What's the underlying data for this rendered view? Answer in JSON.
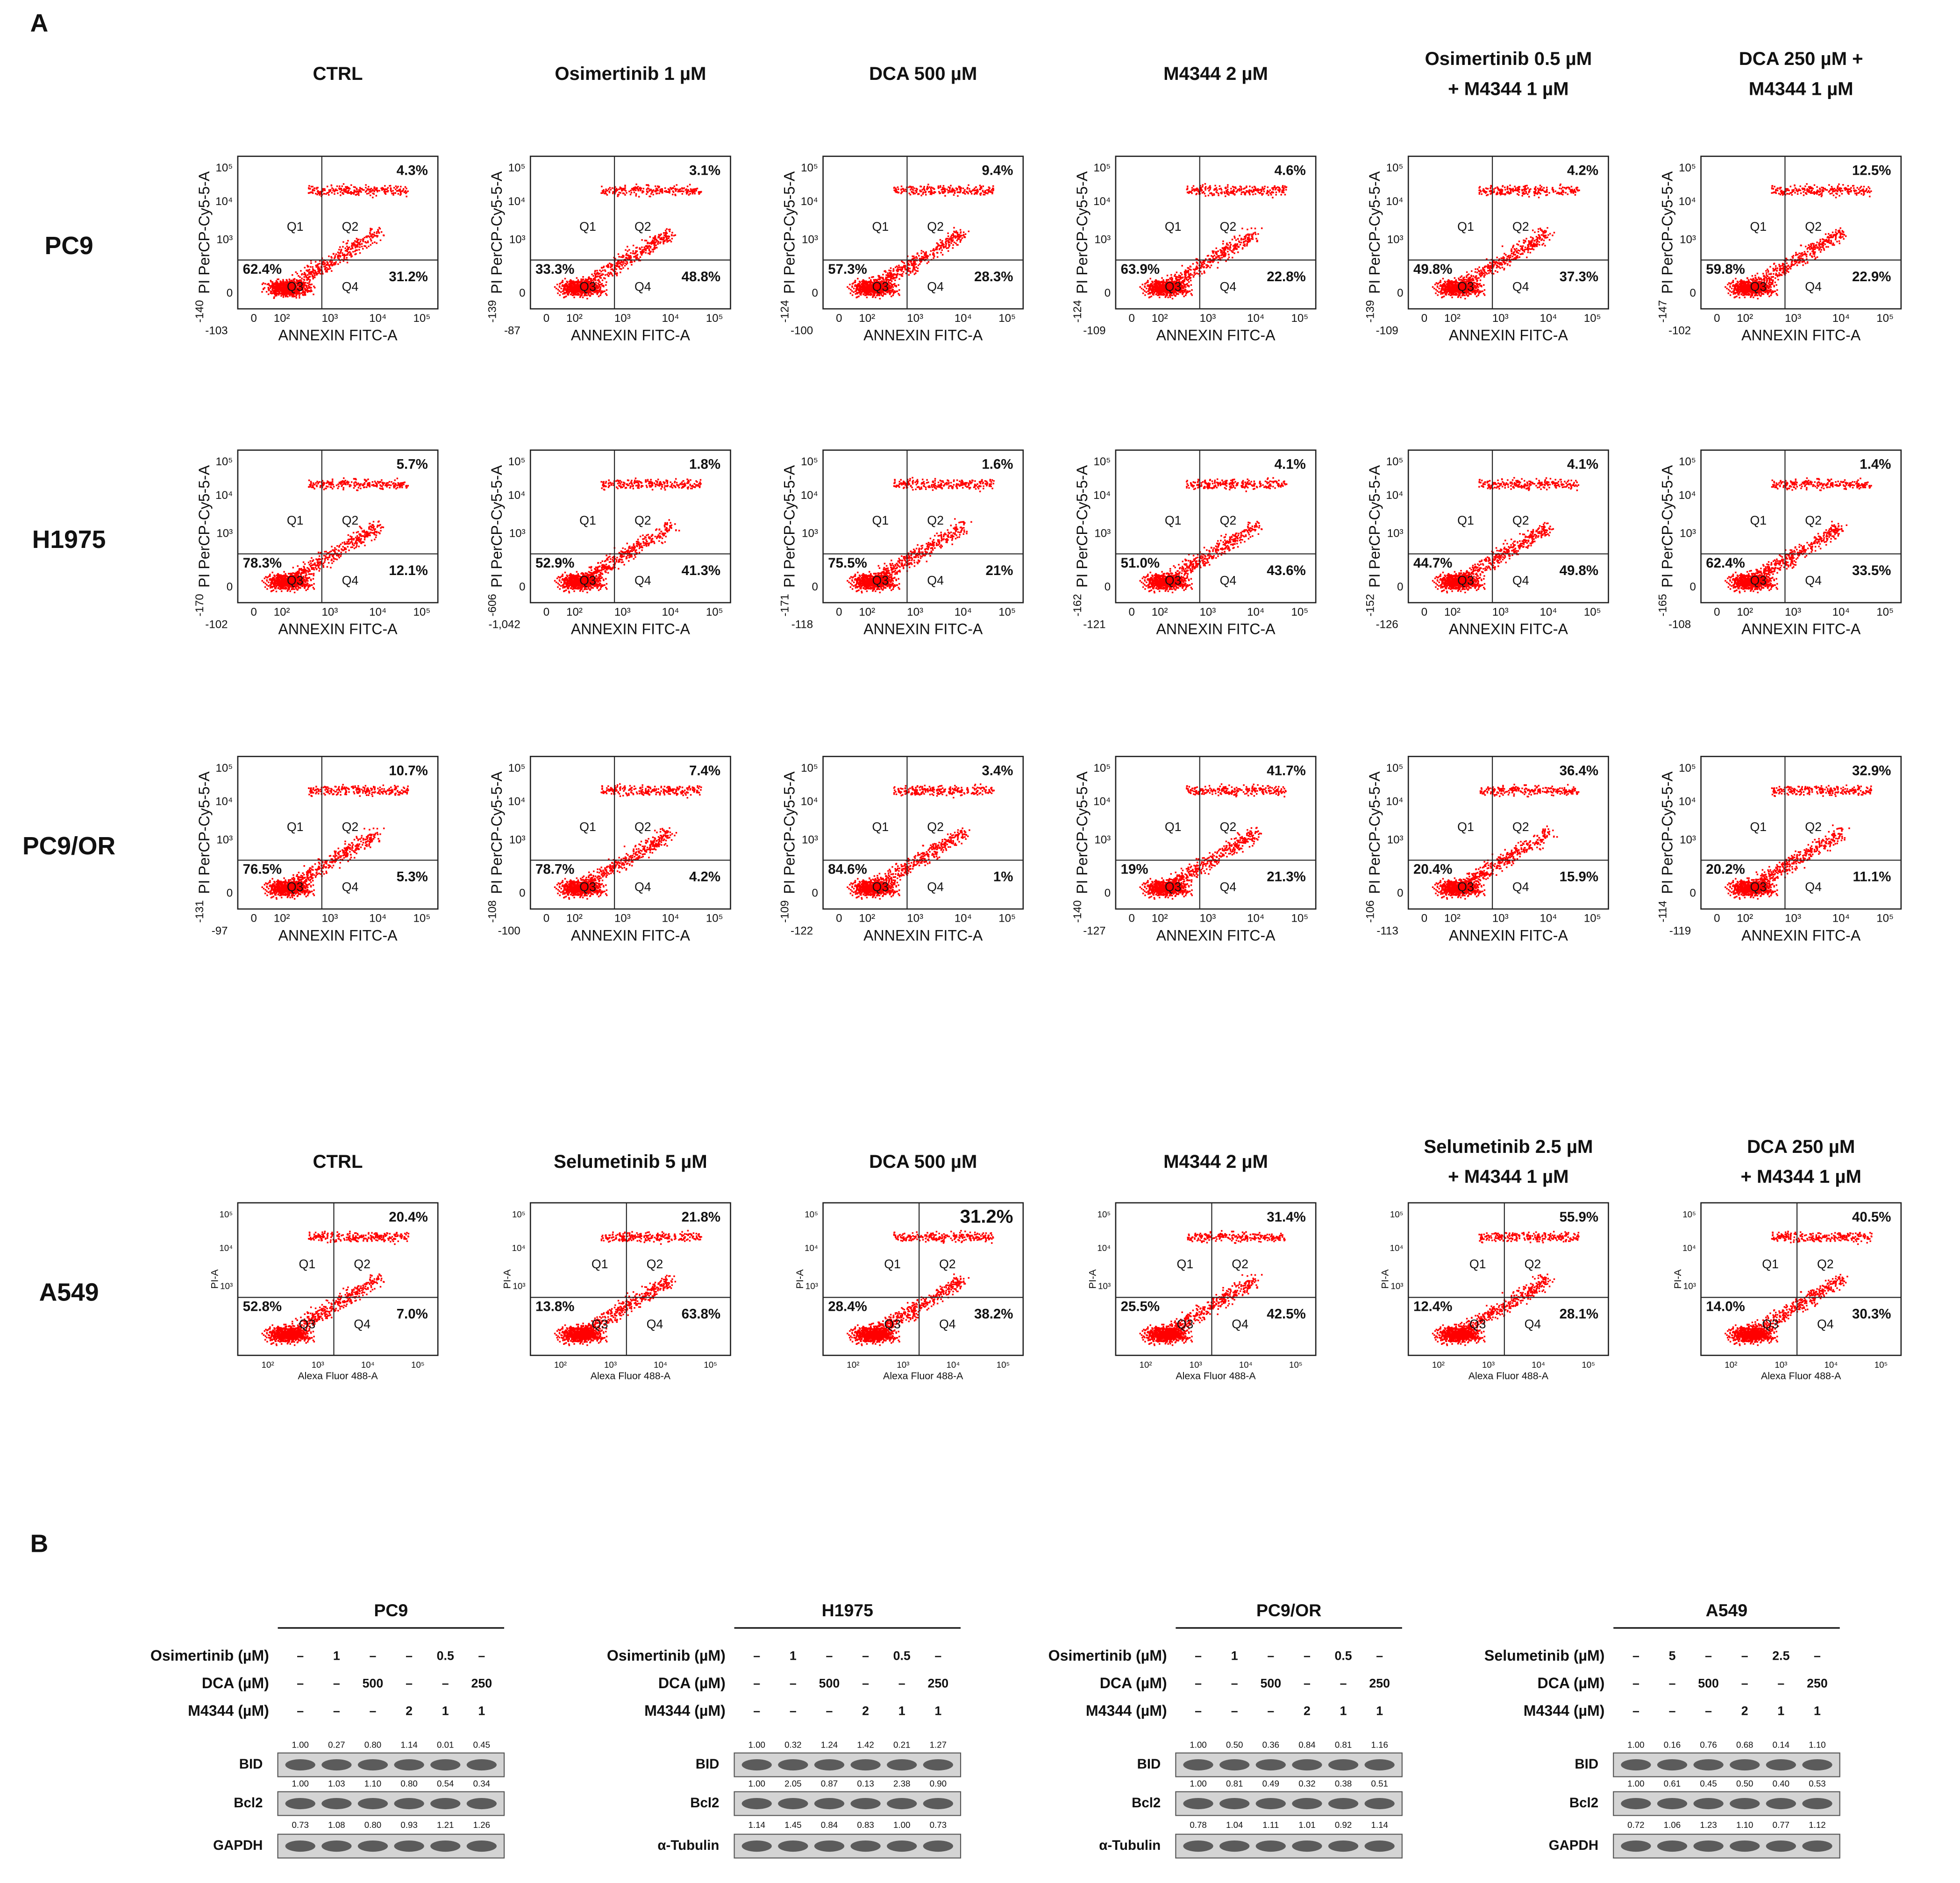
{
  "panel_a": {
    "label": "A",
    "sets": [
      {
        "conditions": [
          [
            "CTRL"
          ],
          [
            "Osimertinib 1 µM"
          ],
          [
            "DCA 500 µM"
          ],
          [
            "M4344 2 µM"
          ],
          [
            "Osimertinib 0.5 µM",
            "+ M4344 1 µM"
          ],
          [
            "DCA 250 µM +",
            "M4344 1 µM"
          ]
        ],
        "y_axis_label": "PI PerCP-Cy5-5-A",
        "x_axis_label": "ANNEXIN FITC-A",
        "x_ticks": [
          "0",
          "10²",
          "10³",
          "10⁴",
          "10⁵"
        ],
        "y_ticks": [
          "0",
          "10³",
          "10⁴",
          "10⁵"
        ],
        "quadrants": [
          "Q1",
          "Q2",
          "Q3",
          "Q4"
        ],
        "rows": [
          {
            "cell_line": "PC9",
            "plots": [
              {
                "q2": "4.3%",
                "q3": "62.4%",
                "q4": "31.2%",
                "x_min": "-103",
                "y_min": "-140"
              },
              {
                "q2": "3.1%",
                "q3": "33.3%",
                "q4": "48.8%",
                "x_min": "-87",
                "y_min": "-139"
              },
              {
                "q2": "9.4%",
                "q3": "57.3%",
                "q4": "28.3%",
                "x_min": "-100",
                "y_min": "-124"
              },
              {
                "q2": "4.6%",
                "q3": "63.9%",
                "q4": "22.8%",
                "x_min": "-109",
                "y_min": "-124"
              },
              {
                "q2": "4.2%",
                "q3": "49.8%",
                "q4": "37.3%",
                "x_min": "-109",
                "y_min": "-139"
              },
              {
                "q2": "12.5%",
                "q3": "59.8%",
                "q4": "22.9%",
                "x_min": "-102",
                "y_min": "-147"
              }
            ]
          },
          {
            "cell_line": "H1975",
            "plots": [
              {
                "q2": "5.7%",
                "q3": "78.3%",
                "q4": "12.1%",
                "x_min": "-102",
                "y_min": "-170"
              },
              {
                "q2": "1.8%",
                "q3": "52.9%",
                "q4": "41.3%",
                "x_min": "-1,042",
                "y_min": "-606"
              },
              {
                "q2": "1.6%",
                "q3": "75.5%",
                "q4": "21%",
                "x_min": "-118",
                "y_min": "-171"
              },
              {
                "q2": "4.1%",
                "q3": "51.0%",
                "q4": "43.6%",
                "x_min": "-121",
                "y_min": "-162"
              },
              {
                "q2": "4.1%",
                "q3": "44.7%",
                "q4": "49.8%",
                "x_min": "-126",
                "y_min": "-152"
              },
              {
                "q2": "1.4%",
                "q3": "62.4%",
                "q4": "33.5%",
                "x_min": "-108",
                "y_min": "-165"
              }
            ]
          },
          {
            "cell_line": "PC9/OR",
            "plots": [
              {
                "q2": "10.7%",
                "q3": "76.5%",
                "q4": "5.3%",
                "x_min": "-97",
                "y_min": "-131"
              },
              {
                "q2": "7.4%",
                "q3": "78.7%",
                "q4": "4.2%",
                "x_min": "-100",
                "y_min": "-108"
              },
              {
                "q2": "3.4%",
                "q3": "84.6%",
                "q4": "1%",
                "x_min": "-122",
                "y_min": "-109"
              },
              {
                "q2": "41.7%",
                "q3": "19%",
                "q4": "21.3%",
                "x_min": "-127",
                "y_min": "-140"
              },
              {
                "q2": "36.4%",
                "q3": "20.4%",
                "q4": "15.9%",
                "x_min": "-113",
                "y_min": "-106"
              },
              {
                "q2": "32.9%",
                "q3": "20.2%",
                "q4": "11.1%",
                "x_min": "-119",
                "y_min": "-114"
              }
            ]
          }
        ]
      },
      {
        "conditions": [
          [
            "CTRL"
          ],
          [
            "Selumetinib 5 µM"
          ],
          [
            "DCA 500 µM"
          ],
          [
            "M4344 2 µM"
          ],
          [
            "Selumetinib 2.5 µM",
            "+ M4344 1 µM"
          ],
          [
            "DCA 250 µM",
            "+ M4344 1 µM"
          ]
        ],
        "y_axis_label": "PI-A",
        "x_axis_label": "Alexa Fluor 488-A",
        "x_ticks": [
          "10²",
          "10³",
          "10⁴",
          "10⁵"
        ],
        "y_ticks": [
          "10³",
          "10⁴",
          "10⁵"
        ],
        "quadrants": [
          "Q1",
          "Q2",
          "Q3",
          "Q4"
        ],
        "rows": [
          {
            "cell_line": "A549",
            "plots": [
              {
                "q2": "20.4%",
                "q3": "52.8%",
                "q4": "7.0%"
              },
              {
                "q2": "21.8%",
                "q3": "13.8%",
                "q4": "63.8%"
              },
              {
                "q2": "31.2%",
                "q3": "28.4%",
                "q4": "38.2%"
              },
              {
                "q2": "31.4%",
                "q3": "25.5%",
                "q4": "42.5%"
              },
              {
                "q2": "55.9%",
                "q3": "12.4%",
                "q4": "28.1%"
              },
              {
                "q2": "40.5%",
                "q3": "14.0%",
                "q4": "30.3%"
              }
            ]
          }
        ]
      }
    ]
  },
  "panel_b": {
    "label": "B",
    "blots": [
      {
        "cell_line": "PC9",
        "treatments": [
          {
            "label": "Osimertinib (µM)",
            "lanes": [
              "–",
              "1",
              "–",
              "–",
              "0.5",
              "–"
            ]
          },
          {
            "label": "DCA (µM)",
            "lanes": [
              "–",
              "–",
              "500",
              "–",
              "–",
              "250"
            ]
          },
          {
            "label": "M4344 (µM)",
            "lanes": [
              "–",
              "–",
              "–",
              "2",
              "1",
              "1"
            ]
          }
        ],
        "bands": [
          {
            "label": "BID",
            "quant": [
              "1.00",
              "0.27",
              "0.80",
              "1.14",
              "0.01",
              "0.45"
            ]
          },
          {
            "label": "Bcl2",
            "quant": [
              "1.00",
              "1.03",
              "1.10",
              "0.80",
              "0.54",
              "0.34"
            ]
          },
          {
            "label": "GAPDH",
            "quant": [
              "0.73",
              "1.08",
              "0.80",
              "0.93",
              "1.21",
              "1.26"
            ]
          }
        ]
      },
      {
        "cell_line": "H1975",
        "treatments": [
          {
            "label": "Osimertinib (µM)",
            "lanes": [
              "–",
              "1",
              "–",
              "–",
              "0.5",
              "–"
            ]
          },
          {
            "label": "DCA (µM)",
            "lanes": [
              "–",
              "–",
              "500",
              "–",
              "–",
              "250"
            ]
          },
          {
            "label": "M4344 (µM)",
            "lanes": [
              "–",
              "–",
              "–",
              "2",
              "1",
              "1"
            ]
          }
        ],
        "bands": [
          {
            "label": "BID",
            "quant": [
              "1.00",
              "0.32",
              "1.24",
              "1.42",
              "0.21",
              "1.27"
            ]
          },
          {
            "label": "Bcl2",
            "quant": [
              "1.00",
              "2.05",
              "0.87",
              "0.13",
              "2.38",
              "0.90"
            ]
          },
          {
            "label": "α-Tubulin",
            "quant": [
              "1.14",
              "1.45",
              "0.84",
              "0.83",
              "1.00",
              "0.73"
            ]
          }
        ]
      },
      {
        "cell_line": "PC9/OR",
        "treatments": [
          {
            "label": "Osimertinib (µM)",
            "lanes": [
              "–",
              "1",
              "–",
              "–",
              "0.5",
              "–"
            ]
          },
          {
            "label": "DCA (µM)",
            "lanes": [
              "–",
              "–",
              "500",
              "–",
              "–",
              "250"
            ]
          },
          {
            "label": "M4344 (µM)",
            "lanes": [
              "–",
              "–",
              "–",
              "2",
              "1",
              "1"
            ]
          }
        ],
        "bands": [
          {
            "label": "BID",
            "quant": [
              "1.00",
              "0.50",
              "0.36",
              "0.84",
              "0.81",
              "1.16"
            ]
          },
          {
            "label": "Bcl2",
            "quant": [
              "1.00",
              "0.81",
              "0.49",
              "0.32",
              "0.38",
              "0.51"
            ]
          },
          {
            "label": "α-Tubulin",
            "quant": [
              "0.78",
              "1.04",
              "1.11",
              "1.01",
              "0.92",
              "1.14"
            ]
          }
        ]
      },
      {
        "cell_line": "A549",
        "treatments": [
          {
            "label": "Selumetinib (µM)",
            "lanes": [
              "–",
              "5",
              "–",
              "–",
              "2.5",
              "–"
            ]
          },
          {
            "label": "DCA (µM)",
            "lanes": [
              "–",
              "–",
              "500",
              "–",
              "–",
              "250"
            ]
          },
          {
            "label": "M4344 (µM)",
            "lanes": [
              "–",
              "–",
              "–",
              "2",
              "1",
              "1"
            ]
          }
        ],
        "bands": [
          {
            "label": "BID",
            "quant": [
              "1.00",
              "0.16",
              "0.76",
              "0.68",
              "0.14",
              "1.10"
            ]
          },
          {
            "label": "Bcl2",
            "quant": [
              "1.00",
              "0.61",
              "0.45",
              "0.50",
              "0.40",
              "0.53"
            ]
          },
          {
            "label": "GAPDH",
            "quant": [
              "0.72",
              "1.06",
              "1.23",
              "1.10",
              "0.77",
              "1.12"
            ]
          }
        ]
      }
    ]
  }
}
